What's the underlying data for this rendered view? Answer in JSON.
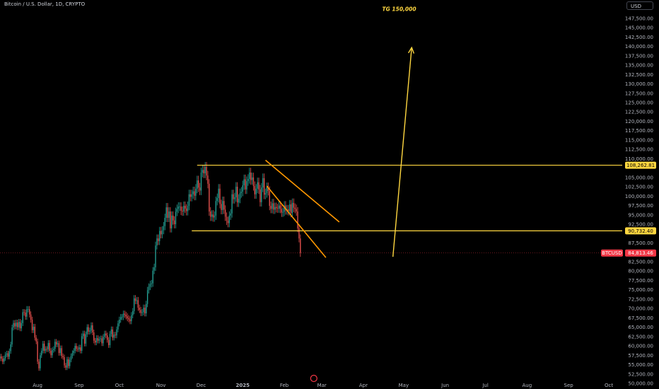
{
  "header": {
    "symbol_title": "Bitcoin / U.S. Dollar, 1D, CRYPTO"
  },
  "currency_button": {
    "label": "USD"
  },
  "annotation": {
    "target_label": "TG 150,000"
  },
  "price_badges": {
    "resistance": "108,262.81",
    "support": "90,732.40",
    "symbol": "BTCUSD",
    "last": "84,813.46"
  },
  "colors": {
    "background": "#000000",
    "up": "#26a69a",
    "down": "#ef5350",
    "annotation": "#ffd740",
    "wedge": "#ff9800",
    "axis_text": "#b2b5be",
    "last_price": "#f23645"
  },
  "chart_data": {
    "type": "candlestick",
    "yaxis_ticks": [
      "147,500.00",
      "145,000.00",
      "142,500.00",
      "140,000.00",
      "137,500.00",
      "135,000.00",
      "132,500.00",
      "130,000.00",
      "127,500.00",
      "125,000.00",
      "122,500.00",
      "120,000.00",
      "117,500.00",
      "115,000.00",
      "112,500.00",
      "110,000.00",
      "105,000.00",
      "102,500.00",
      "100,000.00",
      "97,500.00",
      "95,000.00",
      "92,500.00",
      "87,500.00",
      "82,500.00",
      "80,000.00",
      "77,500.00",
      "75,000.00",
      "72,500.00",
      "70,000.00",
      "67,500.00",
      "65,000.00",
      "62,500.00",
      "60,000.00",
      "57,500.00",
      "55,000.00",
      "52,500.00",
      "50,000.00"
    ],
    "yaxis_range": [
      50000,
      150500
    ],
    "xaxis_ticks": [
      "Aug",
      "Sep",
      "Oct",
      "Nov",
      "Dec",
      "2025",
      "Feb",
      "Mar",
      "Apr",
      "May",
      "Jun",
      "Jul",
      "Aug",
      "Sep",
      "Oct"
    ],
    "xaxis_tick_dates": [
      "2024-08-01",
      "2024-09-01",
      "2024-10-01",
      "2024-11-01",
      "2024-12-01",
      "2025-01-01",
      "2025-02-01",
      "2025-03-01",
      "2025-04-01",
      "2025-05-01",
      "2025-06-01",
      "2025-07-01",
      "2025-08-01",
      "2025-09-01",
      "2025-10-01"
    ],
    "x_range": [
      "2024-07-04",
      "2025-10-11"
    ],
    "last_price": 84813.46,
    "horizontal_lines": [
      {
        "price": 108262.81,
        "from": "2024-11-28",
        "to": "2025-10-11"
      },
      {
        "price": 90732.4,
        "from": "2024-11-24",
        "to": "2025-10-11"
      }
    ],
    "trend_lines": [
      {
        "from": [
          "2025-01-18",
          109600
        ],
        "to": [
          "2025-03-14",
          93100
        ],
        "color": "wedge"
      },
      {
        "from": [
          "2025-01-19",
          102700
        ],
        "to": [
          "2025-03-04",
          83600
        ],
        "color": "wedge"
      }
    ],
    "target_arrow": {
      "from": [
        "2025-04-23",
        83800
      ],
      "to": [
        "2025-05-07",
        139700
      ],
      "target": 150000
    },
    "candles": {
      "start": "2024-07-04",
      "close": [
        57200,
        56600,
        55800,
        56700,
        57700,
        58000,
        57100,
        58600,
        60400,
        64900,
        66100,
        65200,
        66200,
        65000,
        66400,
        64700,
        66100,
        69000,
        68900,
        67800,
        69800,
        69800,
        68400,
        67000,
        64200,
        65100,
        62200,
        61200,
        55800,
        54000,
        57500,
        58700,
        60600,
        58700,
        59200,
        59100,
        60800,
        58700,
        57500,
        58900,
        59200,
        61100,
        60400,
        60700,
        58100,
        59400,
        57300,
        57000,
        54800,
        54200,
        56400,
        54600,
        56300,
        57300,
        58100,
        58700,
        60000,
        59200,
        59100,
        59600,
        58700,
        62600,
        63300,
        60600,
        63100,
        65000,
        63800,
        64100,
        65500,
        63600,
        61400,
        60900,
        62100,
        61400,
        61800,
        62000,
        60700,
        62400,
        63300,
        62800,
        61600,
        60200,
        63200,
        64400,
        62200,
        63000,
        62800,
        64400,
        66000,
        67000,
        67700,
        67700,
        68600,
        68300,
        67900,
        67400,
        67100,
        66600,
        68200,
        69300,
        72700,
        72000,
        72200,
        70200,
        69600,
        68800,
        69000,
        70200,
        68700,
        71200,
        74900,
        75800,
        76500,
        76700,
        80100,
        81000,
        86800,
        88700,
        88000,
        90700,
        89800,
        90900,
        92000,
        94200,
        97000,
        94200,
        95900,
        91400,
        94800,
        93500,
        92500,
        95800,
        96600,
        97200,
        97200,
        96100,
        95900,
        97400,
        96700,
        96000,
        97400,
        100500,
        99800,
        100500,
        101300,
        100100,
        102000,
        104200,
        102300,
        101500,
        106300,
        107000,
        106100,
        107800,
        105500,
        103300,
        95900,
        94500,
        95100,
        94300,
        94800,
        98700,
        99500,
        102000,
        97900,
        96300,
        98700,
        96400,
        94500,
        93400,
        92800,
        94800,
        95400,
        100500,
        99200,
        99700,
        102500,
        98300,
        99300,
        100800,
        101200,
        102900,
        104500,
        101800,
        104000,
        104600,
        106300,
        104300,
        105000,
        102700,
        100500,
        102000,
        103700,
        101800,
        98400,
        102300,
        104800,
        100400,
        100800,
        102400,
        101400,
        97400,
        96600,
        98100,
        96400,
        97100,
        96800,
        96700,
        97500,
        96600,
        95600,
        95800,
        97500,
        96200,
        96500,
        96000,
        97800,
        95500,
        98200,
        96900,
        96600,
        95900,
        91400,
        88700,
        84810
      ],
      "note": "daily closes read from chart; each candle opens at previous close"
    }
  }
}
